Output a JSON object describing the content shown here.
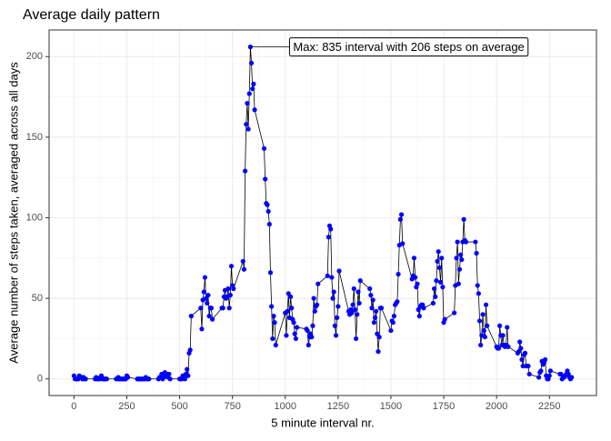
{
  "chart_data": {
    "type": "line",
    "title": "Average daily pattern",
    "x_label": "5 minute interval nr.",
    "y_label": "Average number of steps taken, averaged across all days",
    "annotation": "Max: 835 interval with 206 steps on average",
    "line_color": "#000000",
    "point_color": "#0000ff",
    "grid": true,
    "xlim": [
      -117.75,
      2472.75
    ],
    "ylim": [
      -10.3,
      216.5
    ],
    "xticks": [
      0,
      250,
      500,
      750,
      1000,
      1250,
      1500,
      1750,
      2000,
      2250
    ],
    "yticks": [
      0,
      50,
      100,
      150,
      200
    ],
    "x": [
      0,
      5,
      10,
      15,
      20,
      25,
      30,
      35,
      40,
      45,
      50,
      55,
      100,
      105,
      110,
      115,
      120,
      125,
      130,
      135,
      140,
      145,
      150,
      155,
      200,
      205,
      210,
      215,
      220,
      225,
      230,
      235,
      240,
      245,
      250,
      255,
      300,
      305,
      310,
      315,
      320,
      325,
      330,
      335,
      340,
      345,
      350,
      355,
      400,
      405,
      410,
      415,
      420,
      425,
      430,
      435,
      440,
      445,
      450,
      455,
      500,
      505,
      510,
      515,
      520,
      525,
      530,
      535,
      540,
      545,
      550,
      555,
      600,
      605,
      610,
      615,
      620,
      625,
      630,
      635,
      640,
      645,
      650,
      655,
      700,
      705,
      710,
      715,
      720,
      725,
      730,
      735,
      740,
      745,
      750,
      755,
      800,
      805,
      810,
      815,
      820,
      825,
      830,
      835,
      840,
      845,
      850,
      855,
      900,
      905,
      910,
      915,
      920,
      925,
      930,
      935,
      940,
      945,
      950,
      955,
      1000,
      1005,
      1010,
      1015,
      1020,
      1025,
      1030,
      1035,
      1040,
      1045,
      1050,
      1055,
      1100,
      1105,
      1110,
      1115,
      1120,
      1125,
      1130,
      1135,
      1140,
      1145,
      1150,
      1155,
      1200,
      1205,
      1210,
      1215,
      1220,
      1225,
      1230,
      1235,
      1240,
      1245,
      1250,
      1255,
      1300,
      1305,
      1310,
      1315,
      1320,
      1325,
      1330,
      1335,
      1340,
      1345,
      1350,
      1355,
      1400,
      1405,
      1410,
      1415,
      1420,
      1425,
      1430,
      1435,
      1440,
      1445,
      1450,
      1455,
      1500,
      1505,
      1510,
      1515,
      1520,
      1525,
      1530,
      1535,
      1540,
      1545,
      1550,
      1555,
      1600,
      1605,
      1610,
      1615,
      1620,
      1625,
      1630,
      1635,
      1640,
      1645,
      1650,
      1655,
      1700,
      1705,
      1710,
      1715,
      1720,
      1725,
      1730,
      1735,
      1740,
      1745,
      1750,
      1755,
      1800,
      1805,
      1810,
      1815,
      1820,
      1825,
      1830,
      1835,
      1840,
      1845,
      1850,
      1855,
      1900,
      1905,
      1910,
      1915,
      1920,
      1925,
      1930,
      1935,
      1940,
      1945,
      1950,
      1955,
      2000,
      2005,
      2010,
      2015,
      2020,
      2025,
      2030,
      2035,
      2040,
      2045,
      2050,
      2055,
      2100,
      2105,
      2110,
      2115,
      2120,
      2125,
      2130,
      2135,
      2140,
      2145,
      2150,
      2155,
      2200,
      2205,
      2210,
      2215,
      2220,
      2225,
      2230,
      2235,
      2240,
      2245,
      2250,
      2255,
      2300,
      2305,
      2310,
      2315,
      2320,
      2325,
      2330,
      2335,
      2340,
      2345,
      2350,
      2355
    ],
    "series": [
      {
        "values": [
          2,
          0,
          0,
          0,
          0,
          2,
          1,
          1,
          0,
          1,
          0,
          0,
          0,
          1,
          0,
          0,
          0,
          1,
          2,
          0,
          0,
          0,
          0,
          0,
          0,
          0,
          1,
          0,
          0,
          0,
          0,
          0,
          0,
          0,
          2,
          1,
          0,
          0,
          0,
          0,
          0,
          0,
          0,
          0,
          1,
          0,
          0,
          0,
          0,
          1,
          1,
          3,
          0,
          1,
          4,
          2,
          3,
          1,
          3,
          0,
          0,
          0,
          0,
          2,
          2,
          0,
          3,
          6,
          2,
          16,
          18,
          39,
          44,
          31,
          49,
          54,
          63,
          50,
          47,
          52,
          39,
          44,
          44,
          37,
          44,
          44,
          51,
          55,
          50,
          51,
          56,
          44,
          52,
          70,
          58,
          56,
          73,
          68,
          129,
          158,
          171,
          155,
          177,
          206,
          196,
          180,
          183,
          167,
          143,
          124,
          109,
          108,
          104,
          96,
          66,
          45,
          25,
          39,
          35,
          21,
          41,
          27,
          42,
          53,
          38,
          51,
          44,
          37,
          35,
          28,
          25,
          32,
          31,
          30,
          21,
          26,
          28,
          26,
          33,
          50,
          42,
          45,
          46,
          59,
          64,
          88,
          95,
          93,
          63,
          50,
          54,
          33,
          27,
          38,
          45,
          67,
          42,
          40,
          43,
          41,
          46,
          56,
          43,
          25,
          40,
          54,
          47,
          61,
          56,
          52,
          44,
          49,
          35,
          38,
          42,
          28,
          17,
          26,
          44,
          44,
          30,
          36,
          35,
          39,
          46,
          47,
          48,
          65,
          83,
          99,
          102,
          84,
          62,
          64,
          75,
          63,
          57,
          59,
          43,
          39,
          45,
          46,
          46,
          44,
          47,
          56,
          51,
          61,
          73,
          79,
          69,
          60,
          75,
          57,
          35,
          37,
          41,
          58,
          75,
          85,
          59,
          68,
          77,
          74,
          85,
          99,
          86,
          85,
          85,
          78,
          58,
          53,
          36,
          21,
          27,
          40,
          30,
          26,
          46,
          33,
          20,
          19,
          19,
          33,
          27,
          21,
          27,
          21,
          20,
          21,
          32,
          20,
          16,
          17,
          23,
          19,
          12,
          8,
          15,
          16,
          8,
          8,
          8,
          3,
          1,
          4,
          5,
          11,
          9,
          10,
          12,
          2,
          0,
          0,
          2,
          5,
          3,
          3,
          0,
          1,
          1,
          2,
          3,
          5,
          3,
          1,
          0,
          1
        ]
      }
    ]
  }
}
